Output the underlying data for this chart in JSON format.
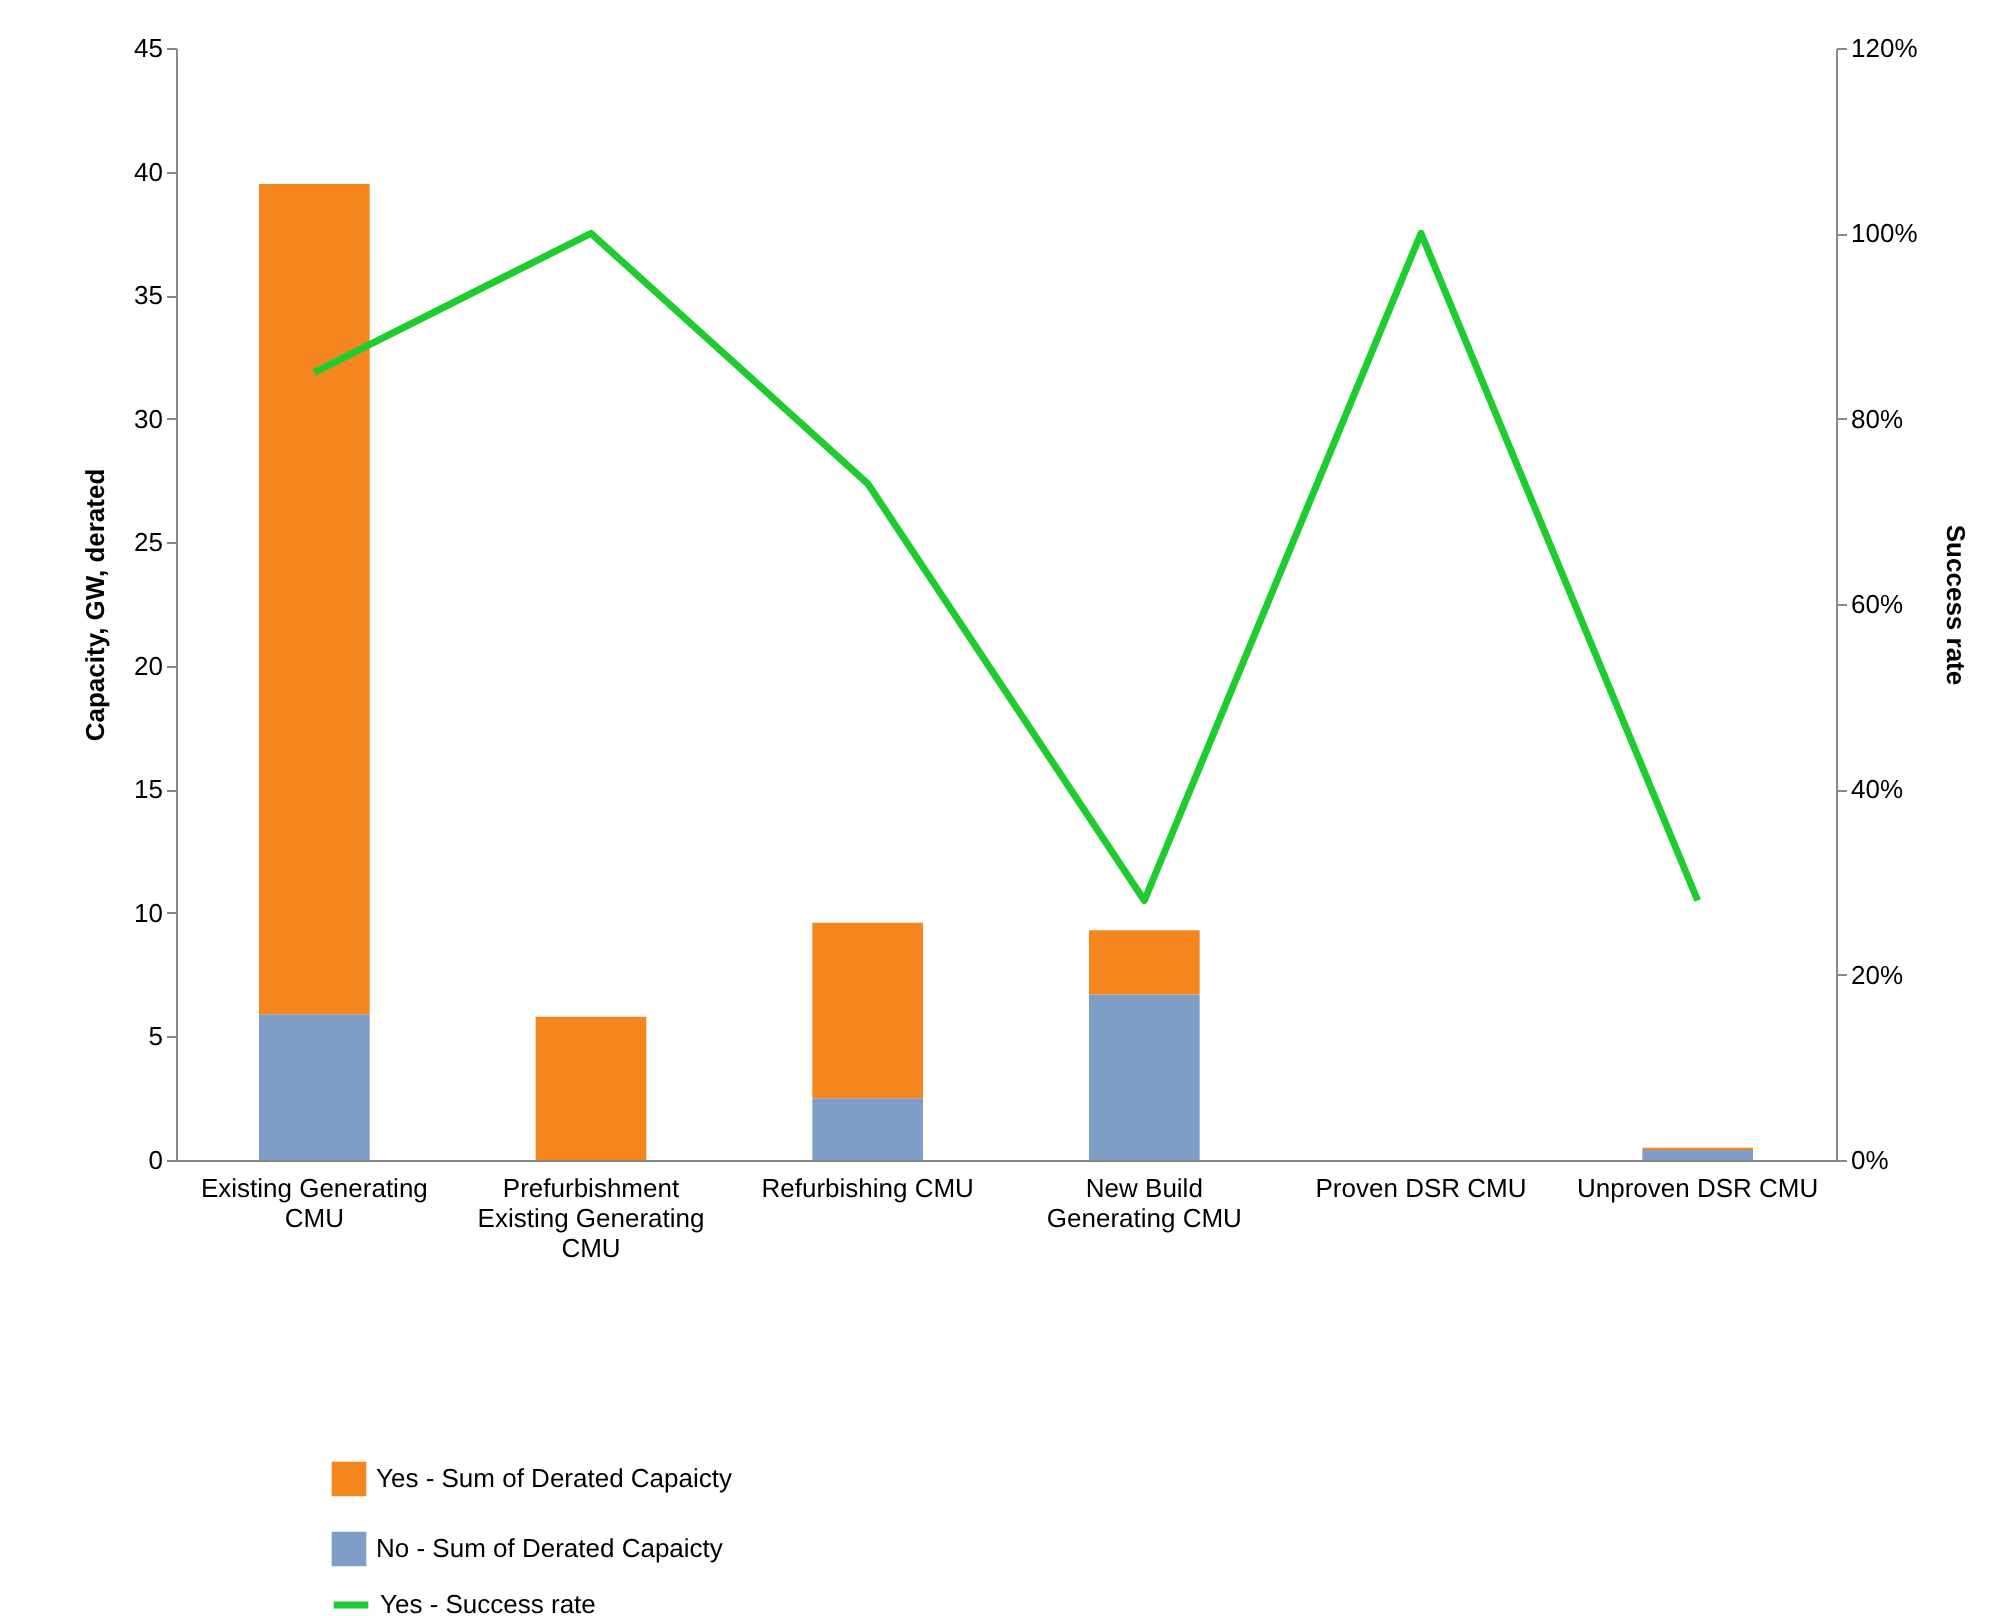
{
  "chart_data": {
    "type": "bar",
    "stacked": true,
    "categories": [
      "Existing Generating CMU",
      "Prefurbishment Existing Generating CMU",
      "Refurbishing CMU",
      "New Build Generating CMU",
      "Proven DSR CMU",
      "Unproven DSR CMU"
    ],
    "series": [
      {
        "name": "No - Sum of Derated Capaicty",
        "color": "#7f9ec7",
        "values": [
          5.9,
          0,
          2.5,
          6.7,
          0,
          0.4
        ]
      },
      {
        "name": "Yes - Sum of Derated Capaicty",
        "color": "#f5861f",
        "values": [
          33.6,
          5.8,
          7.1,
          2.6,
          0,
          0.1
        ]
      },
      {
        "name": "Yes - Success rate",
        "type": "line",
        "axis": "y2",
        "color": "#1fcc2f",
        "values": [
          85,
          100,
          73,
          28,
          100,
          28
        ]
      }
    ],
    "ylabel": "Capacity, GW, derated",
    "y2label": "Success rate",
    "ylim": [
      0,
      45
    ],
    "yticks": [
      0,
      5,
      10,
      15,
      20,
      25,
      30,
      35,
      40,
      45
    ],
    "y2lim": [
      0,
      120
    ],
    "y2ticks": [
      {
        "value": 0,
        "label": "0%"
      },
      {
        "value": 20,
        "label": "20%"
      },
      {
        "value": 40,
        "label": "40%"
      },
      {
        "value": 60,
        "label": "60%"
      },
      {
        "value": 80,
        "label": "80%"
      },
      {
        "value": 100,
        "label": "100%"
      },
      {
        "value": 120,
        "label": "120%"
      }
    ],
    "legend": "bottom left",
    "grid": false
  }
}
